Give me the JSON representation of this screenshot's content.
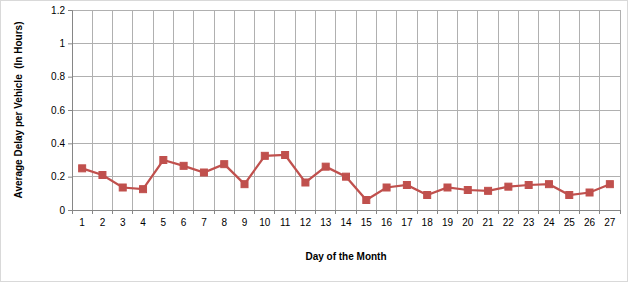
{
  "chart_data": {
    "type": "line",
    "x_label": "Day of the Month",
    "y_label": "Average Delay per Vehicle  (In Hours)",
    "categories": [
      "1",
      "2",
      "3",
      "4",
      "5",
      "6",
      "7",
      "8",
      "9",
      "10",
      "11",
      "12",
      "13",
      "14",
      "15",
      "16",
      "17",
      "18",
      "19",
      "20",
      "21",
      "22",
      "23",
      "24",
      "25",
      "26",
      "27"
    ],
    "values": [
      0.25,
      0.21,
      0.135,
      0.125,
      0.3,
      0.265,
      0.225,
      0.275,
      0.155,
      0.325,
      0.33,
      0.165,
      0.26,
      0.2,
      0.06,
      0.135,
      0.15,
      0.09,
      0.135,
      0.12,
      0.115,
      0.14,
      0.15,
      0.155,
      0.09,
      0.105,
      0.155
    ],
    "color": "#c0504d",
    "marker": "square",
    "ylim": [
      0,
      1.2
    ],
    "yticks": [
      0,
      0.2,
      0.4,
      0.6,
      0.8,
      1,
      1.2
    ],
    "grid": true
  }
}
